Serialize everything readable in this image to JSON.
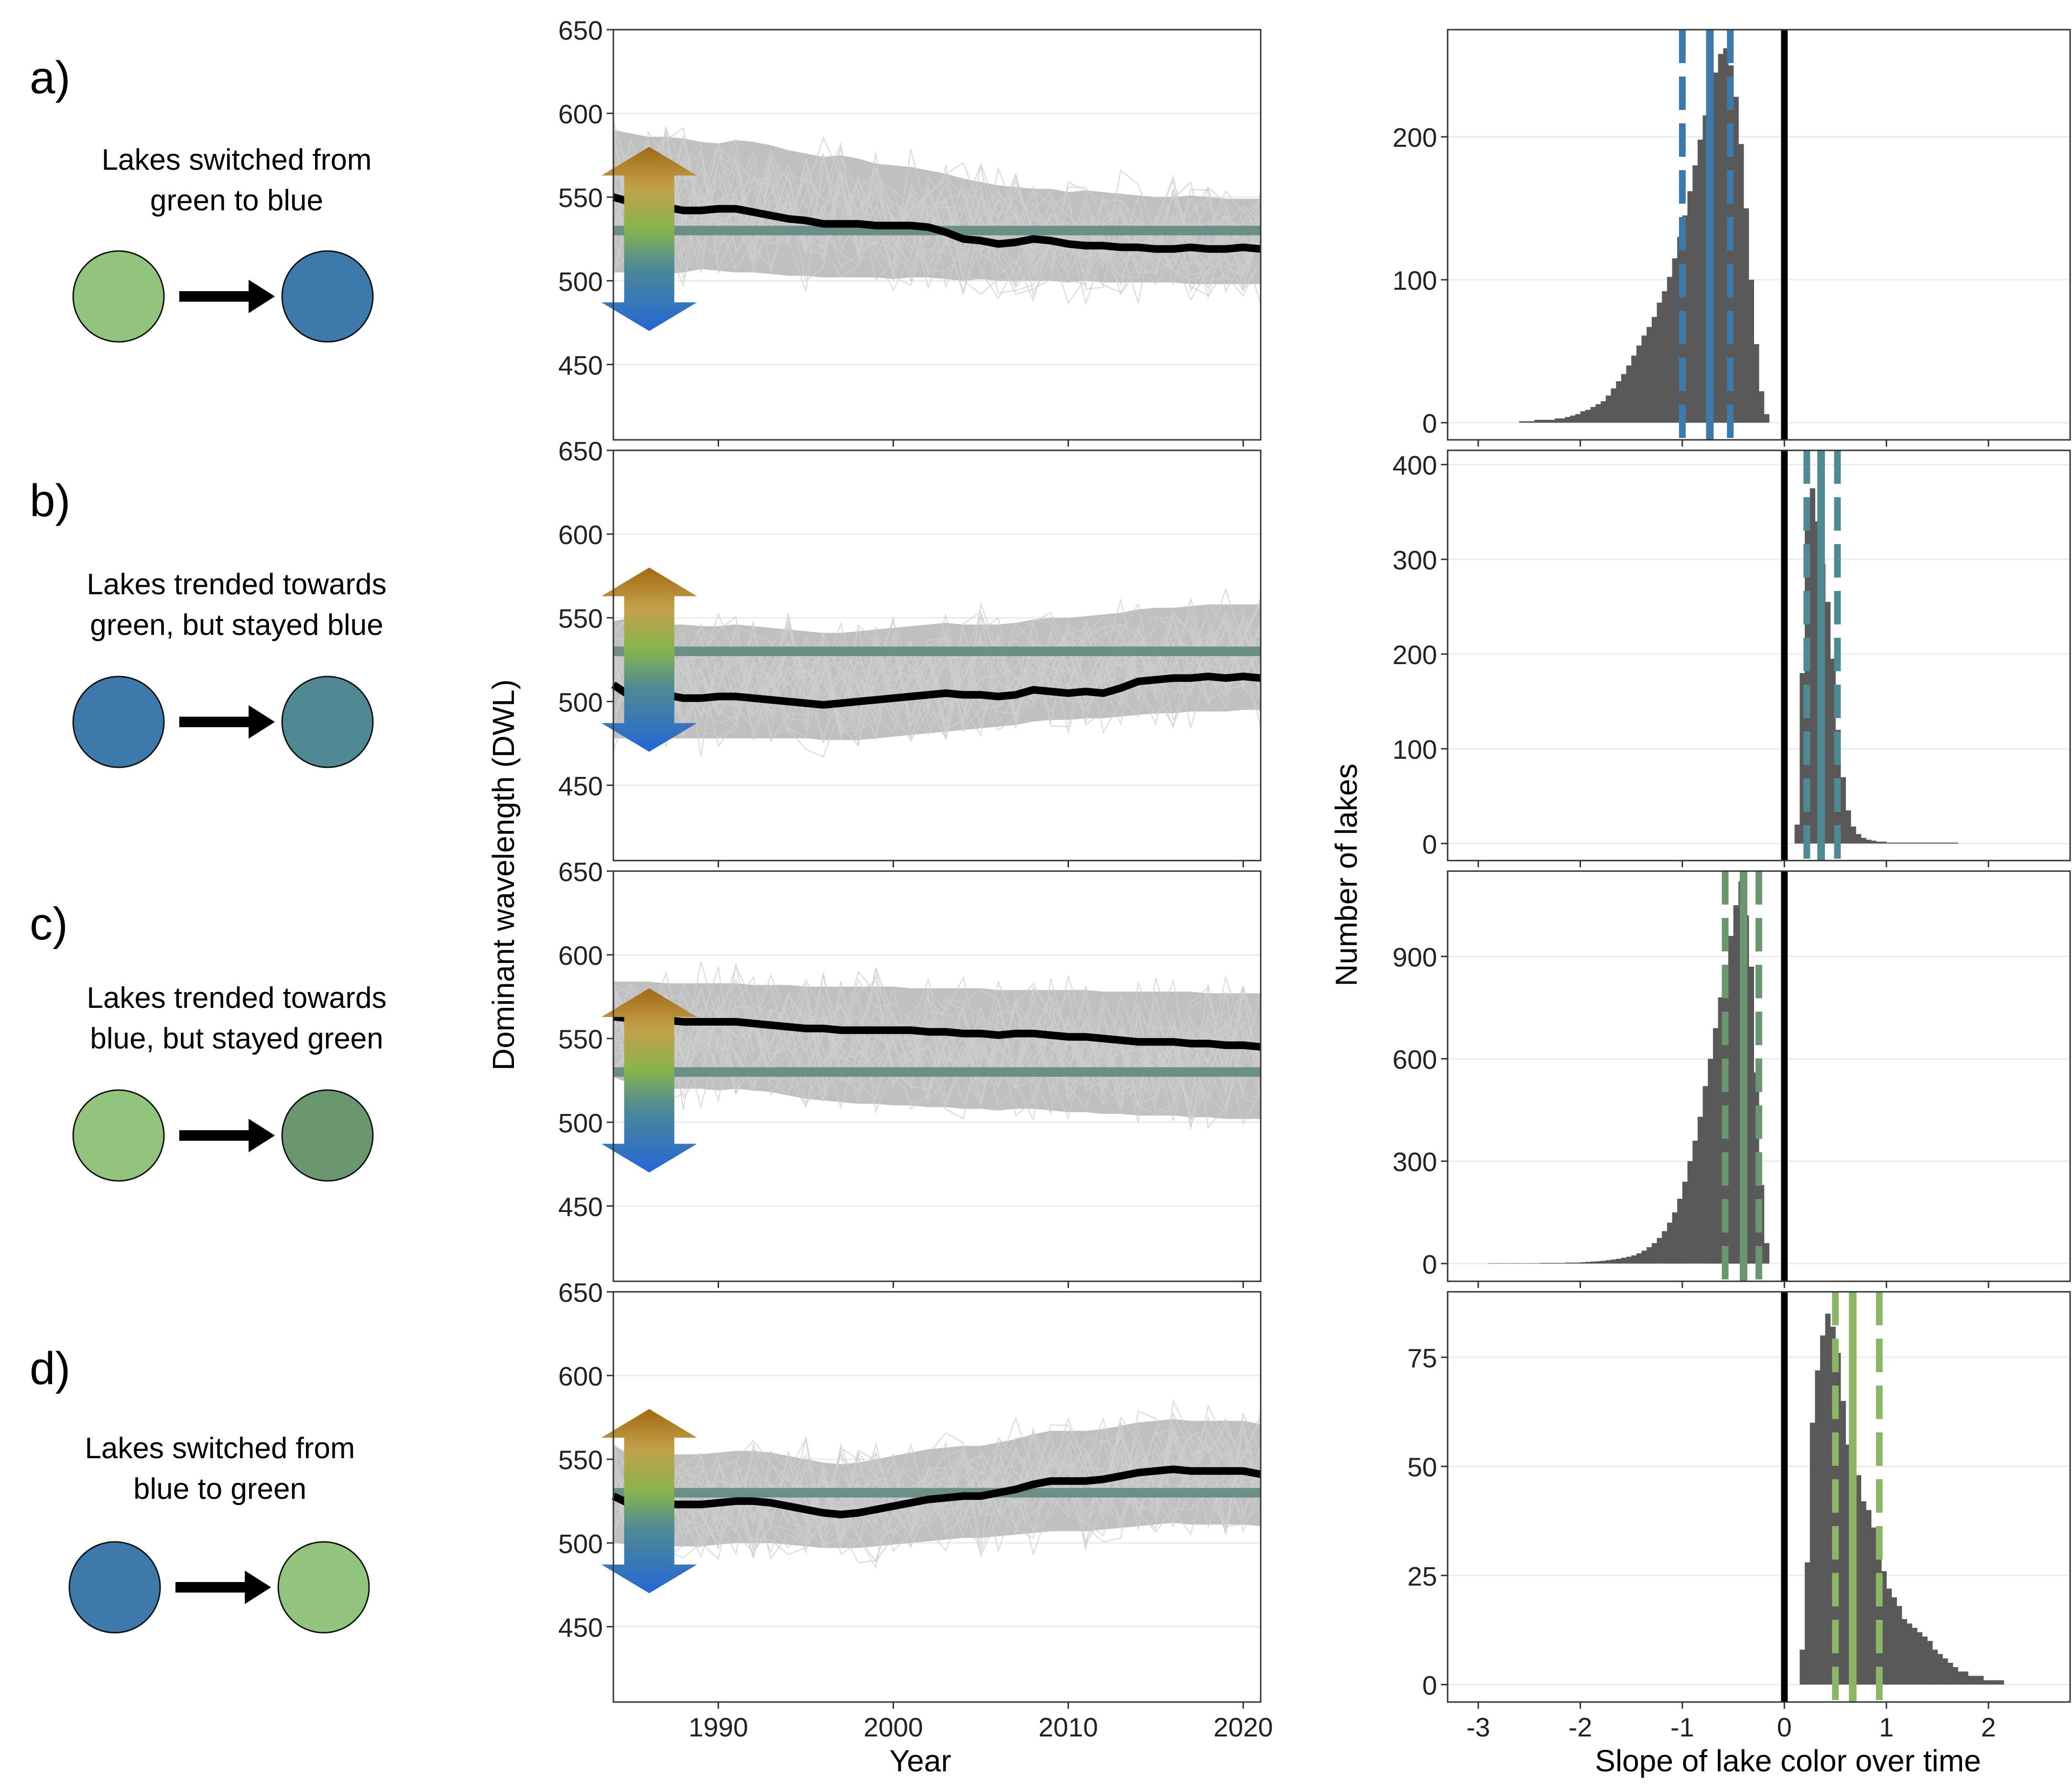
{
  "panels": [
    {
      "letter": "a)",
      "desc_lines": [
        "Lakes switched from",
        "green to blue"
      ],
      "from_color": "#93c47d",
      "to_color": "#3d79aa"
    },
    {
      "letter": "b)",
      "desc_lines": [
        "Lakes trended towards",
        "green, but stayed blue"
      ],
      "from_color": "#3d79aa",
      "to_color": "#4f8a94"
    },
    {
      "letter": "c)",
      "desc_lines": [
        "Lakes trended towards",
        "blue, but stayed green"
      ],
      "from_color": "#93c47d",
      "to_color": "#6a9670"
    },
    {
      "letter": "d)",
      "desc_lines": [
        "Lakes switched from",
        "blue to green"
      ],
      "from_color": "#3d79aa",
      "to_color": "#93c47d"
    }
  ],
  "colors": {
    "lake_blue": "#3d79aa",
    "lake_green": "#93c47d",
    "threshold_line": "#6b8f86",
    "mean_line": "#000000",
    "background_lines": "#c0c0c0",
    "histogram_bar": "#595959",
    "panel_blue": "#3d79aa",
    "panel_teal": "#4f8a94",
    "panel_darkgreen": "#6a9670",
    "panel_green": "#8ab665"
  },
  "chart_data": [
    {
      "type": "line",
      "panels": [
        "a)",
        "b)",
        "c)",
        "d)"
      ],
      "xlabel": "Year",
      "ylabel": "Dominant wavelength (DWL)",
      "xlim": [
        1984,
        2021
      ],
      "ylim": [
        405,
        650
      ],
      "x_ticks": [
        1990,
        2000,
        2010,
        2020
      ],
      "y_ticks": [
        450,
        500,
        550,
        600,
        650
      ],
      "grid": true,
      "threshold_dwl": 530,
      "arrow_dwl_range": [
        470,
        580
      ],
      "years": [
        1984,
        1985,
        1986,
        1987,
        1988,
        1989,
        1990,
        1991,
        1992,
        1993,
        1994,
        1995,
        1996,
        1997,
        1998,
        1999,
        2000,
        2001,
        2002,
        2003,
        2004,
        2005,
        2006,
        2007,
        2008,
        2009,
        2010,
        2011,
        2012,
        2013,
        2014,
        2015,
        2016,
        2017,
        2018,
        2019,
        2020,
        2021
      ],
      "mean_series": [
        {
          "panel": "a)",
          "values": [
            550,
            547,
            545,
            544,
            542,
            542,
            543,
            543,
            541,
            539,
            537,
            536,
            534,
            534,
            534,
            533,
            533,
            533,
            532,
            529,
            525,
            524,
            522,
            523,
            525,
            524,
            522,
            521,
            521,
            520,
            520,
            519,
            519,
            520,
            519,
            519,
            520,
            519
          ]
        },
        {
          "panel": "b)",
          "values": [
            510,
            503,
            504,
            504,
            502,
            502,
            503,
            503,
            502,
            501,
            500,
            499,
            498,
            499,
            500,
            501,
            502,
            503,
            504,
            505,
            504,
            504,
            503,
            504,
            507,
            506,
            505,
            506,
            505,
            508,
            512,
            513,
            514,
            514,
            515,
            514,
            515,
            514
          ]
        },
        {
          "panel": "c)",
          "values": [
            563,
            562,
            561,
            561,
            560,
            560,
            560,
            560,
            559,
            558,
            557,
            556,
            556,
            555,
            555,
            555,
            555,
            555,
            554,
            554,
            553,
            553,
            552,
            553,
            553,
            552,
            551,
            551,
            550,
            549,
            548,
            548,
            548,
            547,
            547,
            546,
            546,
            545
          ]
        },
        {
          "panel": "d)",
          "values": [
            528,
            523,
            522,
            523,
            523,
            523,
            524,
            525,
            525,
            524,
            522,
            520,
            518,
            517,
            518,
            520,
            522,
            524,
            526,
            527,
            528,
            528,
            530,
            532,
            535,
            537,
            537,
            537,
            538,
            540,
            542,
            543,
            544,
            543,
            543,
            543,
            543,
            541
          ]
        }
      ],
      "lake_band": [
        {
          "panel": "a)",
          "lower": [
            505,
            505,
            506,
            504,
            505,
            507,
            506,
            505,
            505,
            504,
            503,
            503,
            502,
            502,
            502,
            502,
            501,
            502,
            502,
            501,
            500,
            501,
            500,
            500,
            500,
            500,
            499,
            500,
            499,
            499,
            499,
            499,
            499,
            498,
            498,
            498,
            498,
            498
          ],
          "upper": [
            590,
            588,
            586,
            586,
            585,
            583,
            582,
            584,
            583,
            581,
            578,
            576,
            574,
            575,
            573,
            570,
            569,
            568,
            566,
            564,
            561,
            559,
            557,
            556,
            555,
            555,
            553,
            554,
            553,
            552,
            551,
            550,
            550,
            551,
            550,
            549,
            549,
            549
          ]
        },
        {
          "panel": "b)",
          "lower": [
            478,
            478,
            478,
            478,
            478,
            478,
            478,
            478,
            478,
            478,
            478,
            478,
            477,
            477,
            477,
            478,
            479,
            480,
            481,
            482,
            483,
            484,
            485,
            486,
            488,
            489,
            489,
            490,
            490,
            491,
            492,
            493,
            493,
            494,
            494,
            494,
            495,
            495
          ],
          "upper": [
            548,
            550,
            547,
            546,
            546,
            545,
            545,
            546,
            545,
            544,
            543,
            542,
            541,
            541,
            542,
            543,
            544,
            545,
            546,
            547,
            546,
            546,
            546,
            547,
            549,
            550,
            550,
            551,
            552,
            553,
            555,
            556,
            556,
            557,
            558,
            558,
            558,
            558
          ]
        },
        {
          "panel": "c)",
          "lower": [
            527,
            523,
            522,
            520,
            520,
            520,
            519,
            520,
            519,
            518,
            516,
            514,
            513,
            512,
            511,
            511,
            510,
            510,
            509,
            509,
            508,
            508,
            507,
            508,
            508,
            507,
            506,
            506,
            505,
            505,
            504,
            504,
            504,
            503,
            503,
            502,
            502,
            502
          ],
          "upper": [
            584,
            584,
            584,
            583,
            583,
            583,
            583,
            583,
            582,
            582,
            582,
            581,
            581,
            581,
            581,
            581,
            581,
            580,
            580,
            580,
            580,
            580,
            579,
            579,
            579,
            579,
            579,
            579,
            578,
            578,
            578,
            578,
            578,
            578,
            577,
            577,
            577,
            577
          ]
        },
        {
          "panel": "d)",
          "lower": [
            500,
            499,
            499,
            498,
            498,
            498,
            499,
            500,
            500,
            500,
            499,
            498,
            497,
            497,
            497,
            498,
            499,
            500,
            501,
            502,
            503,
            503,
            504,
            505,
            506,
            507,
            507,
            507,
            508,
            509,
            510,
            511,
            512,
            511,
            511,
            511,
            511,
            510
          ]
        }
      ]
    },
    {
      "type": "bar",
      "panels": [
        "a)",
        "b)",
        "c)",
        "d)"
      ],
      "xlabel": "Slope of lake color over time",
      "ylabel": "Number of lakes",
      "xlim": [
        -3.3,
        2.8
      ],
      "x_ticks": [
        -3,
        -2,
        -1,
        0,
        1,
        2
      ],
      "grid": true,
      "zero_line": 0,
      "histograms": [
        {
          "panel": "a)",
          "ylim": [
            -12,
            275
          ],
          "y_ticks": [
            0,
            100,
            200
          ],
          "bin_start": -2.6,
          "bin_width": 0.05,
          "counts": [
            1,
            1,
            1,
            2,
            2,
            2,
            2,
            3,
            3,
            4,
            5,
            6,
            8,
            9,
            11,
            13,
            15,
            19,
            24,
            29,
            34,
            40,
            47,
            54,
            61,
            67,
            74,
            84,
            92,
            102,
            115,
            130,
            145,
            162,
            180,
            198,
            215,
            231,
            245,
            258,
            262,
            250,
            228,
            195,
            150,
            100,
            55,
            22,
            6
          ],
          "median": -0.73,
          "quantiles": [
            -1.0,
            -0.53
          ],
          "line_color": "#3d79aa"
        },
        {
          "panel": "b)",
          "ylim": [
            -18,
            415
          ],
          "y_ticks": [
            0,
            100,
            200,
            300,
            400
          ],
          "bin_start": 0.1,
          "bin_width": 0.05,
          "counts": [
            20,
            180,
            360,
            375,
            340,
            295,
            255,
            195,
            120,
            70,
            35,
            18,
            10,
            6,
            4,
            3,
            2,
            2,
            1,
            1,
            1,
            1,
            1,
            1,
            1,
            1,
            1,
            1,
            1,
            1,
            1,
            1
          ],
          "median": 0.36,
          "quantiles": [
            0.22,
            0.52
          ],
          "line_color": "#4f8a94"
        },
        {
          "panel": "c)",
          "ylim": [
            -52,
            1150
          ],
          "y_ticks": [
            0,
            300,
            600,
            900
          ],
          "bin_start": -2.9,
          "bin_width": 0.05,
          "counts": [
            1,
            1,
            1,
            1,
            1,
            1,
            1,
            1,
            1,
            1,
            2,
            2,
            2,
            2,
            2,
            3,
            3,
            3,
            4,
            5,
            6,
            7,
            8,
            10,
            12,
            14,
            17,
            20,
            24,
            30,
            38,
            48,
            60,
            75,
            95,
            120,
            150,
            190,
            240,
            300,
            360,
            430,
            520,
            600,
            690,
            780,
            860,
            960,
            1050,
            1120,
            1020,
            870,
            560,
            230,
            60
          ],
          "median": -0.4,
          "quantiles": [
            -0.58,
            -0.25
          ],
          "line_color": "#6a9670"
        },
        {
          "panel": "d)",
          "ylim": [
            -4,
            90
          ],
          "y_ticks": [
            0,
            25,
            50,
            75
          ],
          "bin_start": 0.15,
          "bin_width": 0.05,
          "counts": [
            8,
            28,
            60,
            72,
            80,
            85,
            82,
            76,
            65,
            55,
            52,
            48,
            42,
            40,
            36,
            30,
            26,
            22,
            20,
            18,
            15,
            14,
            13,
            12,
            11,
            10,
            8,
            7,
            6,
            5,
            4,
            3,
            3,
            2,
            2,
            2,
            1,
            1,
            1,
            1
          ],
          "median": 0.67,
          "quantiles": [
            0.5,
            0.93
          ],
          "line_color": "#8ab665"
        }
      ]
    }
  ]
}
